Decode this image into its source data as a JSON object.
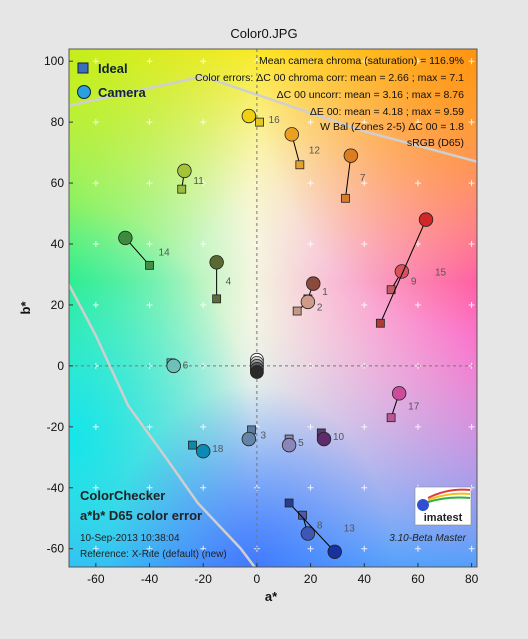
{
  "window": {
    "title": "Color0.JPG"
  },
  "chart_data": {
    "type": "scatter",
    "title": "Color0.JPG",
    "xlabel": "a*",
    "ylabel": "b*",
    "xlim": [
      -70,
      82
    ],
    "ylim": [
      -66,
      104
    ],
    "xticks": [
      -60,
      -40,
      -20,
      0,
      20,
      40,
      60,
      80
    ],
    "yticks": [
      -60,
      -40,
      -20,
      0,
      20,
      40,
      60,
      80,
      100
    ],
    "legend": {
      "position": "top-left",
      "items": [
        {
          "name": "Ideal",
          "marker": "square",
          "color": "#3a6fc0"
        },
        {
          "name": "Camera",
          "marker": "circle",
          "color": "#2aa0e0"
        }
      ]
    },
    "stats": [
      "Mean camera chroma (saturation) = 116.9%",
      "Color errors: ΔC 00 chroma corr:  mean = 2.66 ;  max = 7.1",
      "ΔC 00 uncorr:  mean = 3.16 ;  max = 8.76",
      "ΔE 00:  mean = 4.18 ;  max = 9.59",
      "W Bal (Zones 2-5) ΔC 00 = 1.8",
      "sRGB (D65)"
    ],
    "patches": [
      {
        "label": "1",
        "ideal": [
          19,
          22
        ],
        "camera": [
          21,
          27
        ],
        "ideal_color": "#7b4a3e",
        "camera_color": "#8a4a3c"
      },
      {
        "label": "2",
        "ideal": [
          15,
          18
        ],
        "camera": [
          19,
          21
        ],
        "ideal_color": "#c49a86",
        "camera_color": "#d09a88"
      },
      {
        "label": "3",
        "ideal": [
          -2,
          -21
        ],
        "camera": [
          -3,
          -24
        ],
        "ideal_color": "#5e7a9c",
        "camera_color": "#6585a8"
      },
      {
        "label": "4",
        "ideal": [
          -15,
          22
        ],
        "camera": [
          -15,
          34
        ],
        "ideal_color": "#5c6c3a",
        "camera_color": "#596a30"
      },
      {
        "label": "5",
        "ideal": [
          12,
          -24
        ],
        "camera": [
          12,
          -26
        ],
        "ideal_color": "#8486b0",
        "camera_color": "#8a86ba"
      },
      {
        "label": "6",
        "ideal": [
          -32,
          1
        ],
        "camera": [
          -31,
          0
        ],
        "ideal_color": "#68bab0",
        "camera_color": "#6ec0b8"
      },
      {
        "label": "7",
        "ideal": [
          33,
          55
        ],
        "camera": [
          35,
          69
        ],
        "ideal_color": "#d87c2c",
        "camera_color": "#e07c20"
      },
      {
        "label": "8",
        "ideal": [
          17,
          -49
        ],
        "camera": [
          19,
          -55
        ],
        "ideal_color": "#4a5ca8",
        "camera_color": "#3e56b4"
      },
      {
        "label": "9",
        "ideal": [
          50,
          25
        ],
        "camera": [
          54,
          31
        ],
        "ideal_color": "#c25a62",
        "camera_color": "#d8525c"
      },
      {
        "label": "10",
        "ideal": [
          24,
          -22
        ],
        "camera": [
          25,
          -24
        ],
        "ideal_color": "#5e3c6c",
        "camera_color": "#5e2c6c"
      },
      {
        "label": "11",
        "ideal": [
          -28,
          58
        ],
        "camera": [
          -27,
          64
        ],
        "ideal_color": "#9cbc40",
        "camera_color": "#a4c438"
      },
      {
        "label": "12",
        "ideal": [
          16,
          66
        ],
        "camera": [
          13,
          76
        ],
        "ideal_color": "#e4a22c",
        "camera_color": "#eca020"
      },
      {
        "label": "13",
        "ideal": [
          12,
          -45
        ],
        "camera": [
          29,
          -61
        ],
        "ideal_color": "#2a3c8e",
        "camera_color": "#1830a0"
      },
      {
        "label": "14",
        "ideal": [
          -40,
          33
        ],
        "camera": [
          -49,
          42
        ],
        "ideal_color": "#468c46",
        "camera_color": "#3c8c3c"
      },
      {
        "label": "15",
        "ideal": [
          46,
          14
        ],
        "camera": [
          63,
          48
        ],
        "ideal_color": "#b03a36",
        "camera_color": "#d02828"
      },
      {
        "label": "16",
        "ideal": [
          1,
          80
        ],
        "camera": [
          -3,
          82
        ],
        "ideal_color": "#e4c820",
        "camera_color": "#f0d010"
      },
      {
        "label": "17",
        "ideal": [
          50,
          -17
        ],
        "camera": [
          53,
          -9
        ],
        "ideal_color": "#bc5694",
        "camera_color": "#cc4c9c"
      },
      {
        "label": "18",
        "ideal": [
          -24,
          -26
        ],
        "camera": [
          -20,
          -28
        ],
        "ideal_color": "#0e88a8",
        "camera_color": "#0a8ab4"
      }
    ],
    "neutrals": [
      [
        0,
        2
      ],
      [
        0,
        1
      ],
      [
        0,
        0
      ],
      [
        0,
        -1
      ],
      [
        0,
        -2
      ]
    ],
    "grid": true
  },
  "annotations": {
    "cc_title": "ColorChecker",
    "cc_sub": "a*b* D65 color error",
    "date": "10-Sep-2013 10:38:04",
    "reference": "Reference: X-Rite (default) (new)",
    "version": "3.10-Beta  Master",
    "logo_text": "imatest"
  }
}
